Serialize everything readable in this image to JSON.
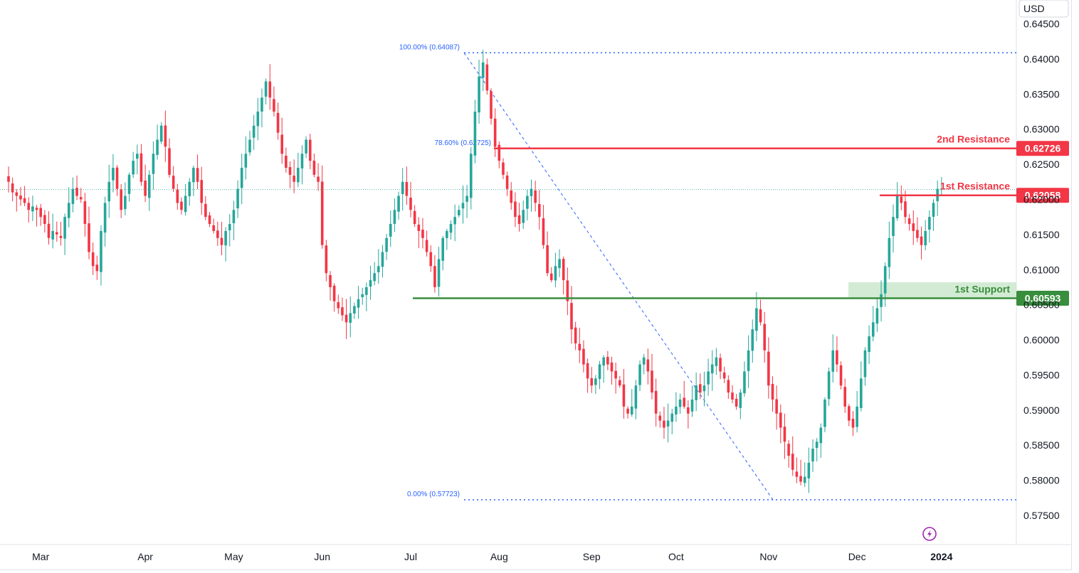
{
  "currency": "USD",
  "colors": {
    "up": "#26a69a",
    "down": "#f23645",
    "resistance": "#f23645",
    "support": "#388e3c",
    "fib": "#2962ff",
    "support_zone": "#c8e6c9"
  },
  "icons": [
    "lightning-icon"
  ],
  "chart_data": {
    "type": "candlestick",
    "y_axis": {
      "range": [
        0.5725,
        0.6465
      ],
      "ticks": [
        "0.57500",
        "0.58000",
        "0.58500",
        "0.59000",
        "0.59500",
        "0.60000",
        "0.60500",
        "0.61000",
        "0.61500",
        "0.62000",
        "0.62500",
        "0.63000",
        "0.63500",
        "0.64000",
        "0.64500"
      ]
    },
    "x_axis": {
      "labels": [
        {
          "label": "Mar",
          "index": 8
        },
        {
          "label": "Apr",
          "index": 34
        },
        {
          "label": "May",
          "index": 56
        },
        {
          "label": "Jun",
          "index": 78
        },
        {
          "label": "Jul",
          "index": 100
        },
        {
          "label": "Aug",
          "index": 122
        },
        {
          "label": "Sep",
          "index": 145
        },
        {
          "label": "Oct",
          "index": 166
        },
        {
          "label": "Nov",
          "index": 189
        },
        {
          "label": "Dec",
          "index": 211
        },
        {
          "label": "2024",
          "index": 232
        }
      ]
    },
    "close_series": [
      0.6225,
      0.621,
      0.6205,
      0.62,
      0.6195,
      0.6185,
      0.619,
      0.6185,
      0.6175,
      0.6165,
      0.6145,
      0.6155,
      0.615,
      0.6145,
      0.6175,
      0.6195,
      0.6215,
      0.6205,
      0.62,
      0.6165,
      0.6125,
      0.6105,
      0.6098,
      0.6155,
      0.6195,
      0.6225,
      0.6245,
      0.6215,
      0.6185,
      0.6205,
      0.6235,
      0.6255,
      0.6265,
      0.6225,
      0.6205,
      0.6235,
      0.6265,
      0.6285,
      0.6305,
      0.6275,
      0.6235,
      0.6215,
      0.6195,
      0.6185,
      0.6205,
      0.6225,
      0.6245,
      0.6225,
      0.6195,
      0.6175,
      0.6165,
      0.6155,
      0.6145,
      0.6135,
      0.6155,
      0.6165,
      0.6185,
      0.6215,
      0.6245,
      0.6265,
      0.6285,
      0.6305,
      0.6325,
      0.6345,
      0.6368,
      0.6345,
      0.6325,
      0.6295,
      0.6265,
      0.6245,
      0.6235,
      0.6225,
      0.6245,
      0.6265,
      0.6285,
      0.6255,
      0.6235,
      0.6225,
      0.6135,
      0.6095,
      0.6075,
      0.6055,
      0.6045,
      0.6035,
      0.6025,
      0.6038,
      0.6048,
      0.6058,
      0.6065,
      0.6075,
      0.6085,
      0.6095,
      0.6105,
      0.6125,
      0.6145,
      0.6165,
      0.6185,
      0.6205,
      0.6225,
      0.6205,
      0.6185,
      0.6165,
      0.6155,
      0.6145,
      0.6125,
      0.6105,
      0.6075,
      0.6115,
      0.6145,
      0.6155,
      0.6165,
      0.6175,
      0.6185,
      0.6195,
      0.6205,
      0.6265,
      0.6325,
      0.6375,
      0.6395,
      0.6355,
      0.6315,
      0.6275,
      0.6255,
      0.6235,
      0.6215,
      0.6195,
      0.6175,
      0.6165,
      0.6185,
      0.6205,
      0.6215,
      0.6195,
      0.6175,
      0.6135,
      0.6095,
      0.6085,
      0.6105,
      0.6115,
      0.6085,
      0.6055,
      0.6015,
      0.5995,
      0.5985,
      0.5965,
      0.5945,
      0.5935,
      0.5945,
      0.5965,
      0.5975,
      0.5965,
      0.5955,
      0.5945,
      0.5935,
      0.5905,
      0.5895,
      0.5905,
      0.5935,
      0.5965,
      0.5975,
      0.5955,
      0.5925,
      0.5895,
      0.5885,
      0.5875,
      0.5885,
      0.5895,
      0.5905,
      0.5915,
      0.5905,
      0.5895,
      0.5915,
      0.5935,
      0.5925,
      0.5935,
      0.5955,
      0.5965,
      0.5975,
      0.5955,
      0.5945,
      0.5925,
      0.5915,
      0.5905,
      0.5925,
      0.5955,
      0.5985,
      0.6015,
      0.6045,
      0.6025,
      0.5985,
      0.5935,
      0.5915,
      0.5895,
      0.5875,
      0.5855,
      0.5835,
      0.5815,
      0.5805,
      0.5798,
      0.5805,
      0.5825,
      0.5845,
      0.5855,
      0.5875,
      0.5915,
      0.5955,
      0.5985,
      0.5965,
      0.5935,
      0.5905,
      0.5885,
      0.5875,
      0.5905,
      0.5945,
      0.5985,
      0.6005,
      0.6025,
      0.6045,
      0.6065,
      0.6105,
      0.6145,
      0.6175,
      0.6205,
      0.6195,
      0.6175,
      0.6165,
      0.6155,
      0.6145,
      0.6135,
      0.6155,
      0.6175,
      0.6195,
      0.6215,
      0.6215
    ],
    "levels": [
      {
        "name": "2nd Resistance",
        "value": 0.62726,
        "tag": "0.62726",
        "color": "#f23645"
      },
      {
        "name": "1st Resistance",
        "value": 0.62058,
        "tag": "0.62058",
        "color": "#f23645"
      },
      {
        "name": "1st Support",
        "value": 0.60593,
        "tag": "0.60593",
        "color": "#388e3c"
      }
    ],
    "support_zone": [
      0.60593,
      0.6082
    ],
    "current_price": 0.6214,
    "fibonacci": [
      {
        "label": "100.00% (0.64087)",
        "value": 0.64087
      },
      {
        "label": "78.60% (0.62725)",
        "value": 0.62725
      },
      {
        "label": "0.00% (0.57723)",
        "value": 0.57723
      }
    ]
  }
}
